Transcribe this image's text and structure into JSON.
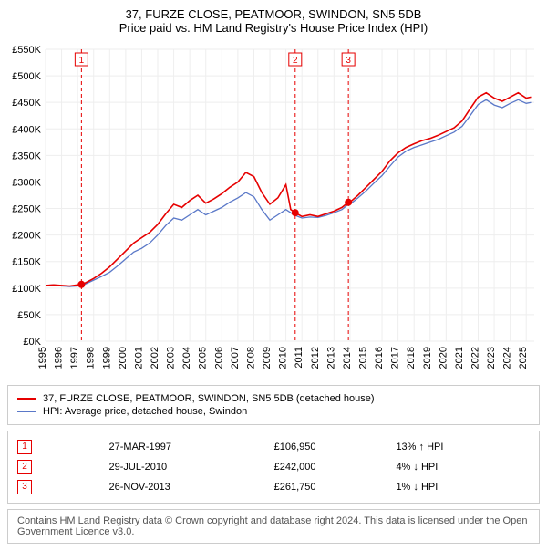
{
  "title1": "37, FURZE CLOSE, PEATMOOR, SWINDON, SN5 5DB",
  "title2": "Price paid vs. HM Land Registry's House Price Index (HPI)",
  "chart": {
    "type": "line",
    "background_color": "#ffffff",
    "grid_color": "#eeeeee",
    "x": {
      "min": 1995,
      "max": 2025.5,
      "tick_step": 1,
      "ticks_rotated_deg": 90,
      "font_size": 11
    },
    "y": {
      "min": 0,
      "max": 550000,
      "tick_step": 50000,
      "prefix": "£",
      "suffix": "K",
      "font_size": 11
    },
    "series": [
      {
        "name": "37, FURZE CLOSE, PEATMOOR, SWINDON, SN5 5DB (detached house)",
        "color": "#e60000",
        "line_width": 1.6,
        "points": [
          [
            1995.0,
            105000
          ],
          [
            1995.5,
            106000
          ],
          [
            1996.0,
            105000
          ],
          [
            1996.5,
            104000
          ],
          [
            1997.0,
            106000
          ],
          [
            1997.24,
            106950
          ],
          [
            1997.5,
            110000
          ],
          [
            1998.0,
            118000
          ],
          [
            1998.5,
            128000
          ],
          [
            1999.0,
            140000
          ],
          [
            1999.5,
            155000
          ],
          [
            2000.0,
            170000
          ],
          [
            2000.5,
            185000
          ],
          [
            2001.0,
            195000
          ],
          [
            2001.5,
            205000
          ],
          [
            2002.0,
            220000
          ],
          [
            2002.5,
            240000
          ],
          [
            2003.0,
            258000
          ],
          [
            2003.5,
            252000
          ],
          [
            2004.0,
            265000
          ],
          [
            2004.5,
            275000
          ],
          [
            2005.0,
            260000
          ],
          [
            2005.5,
            268000
          ],
          [
            2006.0,
            278000
          ],
          [
            2006.5,
            290000
          ],
          [
            2007.0,
            300000
          ],
          [
            2007.5,
            318000
          ],
          [
            2008.0,
            310000
          ],
          [
            2008.5,
            280000
          ],
          [
            2009.0,
            258000
          ],
          [
            2009.5,
            270000
          ],
          [
            2010.0,
            295000
          ],
          [
            2010.3,
            248000
          ],
          [
            2010.58,
            242000
          ],
          [
            2011.0,
            235000
          ],
          [
            2011.5,
            238000
          ],
          [
            2012.0,
            235000
          ],
          [
            2012.5,
            240000
          ],
          [
            2013.0,
            245000
          ],
          [
            2013.5,
            252000
          ],
          [
            2013.9,
            261750
          ],
          [
            2014.0,
            262000
          ],
          [
            2014.5,
            275000
          ],
          [
            2015.0,
            290000
          ],
          [
            2015.5,
            305000
          ],
          [
            2016.0,
            320000
          ],
          [
            2016.5,
            340000
          ],
          [
            2017.0,
            355000
          ],
          [
            2017.5,
            365000
          ],
          [
            2018.0,
            372000
          ],
          [
            2018.5,
            378000
          ],
          [
            2019.0,
            382000
          ],
          [
            2019.5,
            388000
          ],
          [
            2020.0,
            395000
          ],
          [
            2020.5,
            402000
          ],
          [
            2021.0,
            415000
          ],
          [
            2021.5,
            438000
          ],
          [
            2022.0,
            460000
          ],
          [
            2022.5,
            468000
          ],
          [
            2023.0,
            458000
          ],
          [
            2023.5,
            452000
          ],
          [
            2024.0,
            460000
          ],
          [
            2024.5,
            468000
          ],
          [
            2025.0,
            458000
          ],
          [
            2025.3,
            460000
          ]
        ]
      },
      {
        "name": "HPI: Average price, detached house, Swindon",
        "color": "#5a78c8",
        "line_width": 1.3,
        "points": [
          [
            1995.0,
            105000
          ],
          [
            1995.5,
            106000
          ],
          [
            1996.0,
            104000
          ],
          [
            1996.5,
            103000
          ],
          [
            1997.0,
            104000
          ],
          [
            1997.5,
            108000
          ],
          [
            1998.0,
            115000
          ],
          [
            1998.5,
            122000
          ],
          [
            1999.0,
            130000
          ],
          [
            1999.5,
            142000
          ],
          [
            2000.0,
            155000
          ],
          [
            2000.5,
            168000
          ],
          [
            2001.0,
            175000
          ],
          [
            2001.5,
            185000
          ],
          [
            2002.0,
            200000
          ],
          [
            2002.5,
            218000
          ],
          [
            2003.0,
            232000
          ],
          [
            2003.5,
            228000
          ],
          [
            2004.0,
            238000
          ],
          [
            2004.5,
            248000
          ],
          [
            2005.0,
            238000
          ],
          [
            2005.5,
            245000
          ],
          [
            2006.0,
            252000
          ],
          [
            2006.5,
            262000
          ],
          [
            2007.0,
            270000
          ],
          [
            2007.5,
            280000
          ],
          [
            2008.0,
            272000
          ],
          [
            2008.5,
            248000
          ],
          [
            2009.0,
            228000
          ],
          [
            2009.5,
            238000
          ],
          [
            2010.0,
            248000
          ],
          [
            2010.5,
            238000
          ],
          [
            2011.0,
            232000
          ],
          [
            2011.5,
            234000
          ],
          [
            2012.0,
            233000
          ],
          [
            2012.5,
            237000
          ],
          [
            2013.0,
            242000
          ],
          [
            2013.5,
            248000
          ],
          [
            2013.9,
            258000
          ],
          [
            2014.0,
            258000
          ],
          [
            2014.5,
            270000
          ],
          [
            2015.0,
            283000
          ],
          [
            2015.5,
            298000
          ],
          [
            2016.0,
            312000
          ],
          [
            2016.5,
            330000
          ],
          [
            2017.0,
            347000
          ],
          [
            2017.5,
            358000
          ],
          [
            2018.0,
            365000
          ],
          [
            2018.5,
            370000
          ],
          [
            2019.0,
            375000
          ],
          [
            2019.5,
            380000
          ],
          [
            2020.0,
            387000
          ],
          [
            2020.5,
            394000
          ],
          [
            2021.0,
            405000
          ],
          [
            2021.5,
            425000
          ],
          [
            2022.0,
            446000
          ],
          [
            2022.5,
            455000
          ],
          [
            2023.0,
            445000
          ],
          [
            2023.5,
            440000
          ],
          [
            2024.0,
            448000
          ],
          [
            2024.5,
            455000
          ],
          [
            2025.0,
            448000
          ],
          [
            2025.3,
            450000
          ]
        ]
      }
    ],
    "sale_markers": [
      {
        "n": "1",
        "x": 1997.24,
        "y": 106950
      },
      {
        "n": "2",
        "x": 2010.58,
        "y": 242000
      },
      {
        "n": "3",
        "x": 2013.9,
        "y": 261750
      }
    ],
    "dot_radius": 4
  },
  "legend": {
    "items": [
      {
        "color": "#e60000",
        "label": "37, FURZE CLOSE, PEATMOOR, SWINDON, SN5 5DB (detached house)"
      },
      {
        "color": "#5a78c8",
        "label": "HPI: Average price, detached house, Swindon"
      }
    ]
  },
  "transactions": [
    {
      "n": "1",
      "date": "27-MAR-1997",
      "price": "£106,950",
      "delta": "13% ↑ HPI"
    },
    {
      "n": "2",
      "date": "29-JUL-2010",
      "price": "£242,000",
      "delta": "4% ↓ HPI"
    },
    {
      "n": "3",
      "date": "26-NOV-2013",
      "price": "£261,750",
      "delta": "1% ↓ HPI"
    }
  ],
  "footer": "Contains HM Land Registry data © Crown copyright and database right 2024. This data is licensed under the Open Government Licence v3.0."
}
